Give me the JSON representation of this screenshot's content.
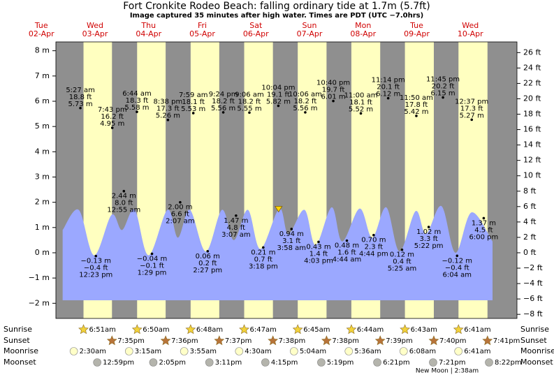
{
  "chart_data": {
    "type": "area",
    "title": "Fort Cronkite Rodeo Beach: falling  ordinary tide at 1.7m (5.7ft)",
    "subtitle": "Image captured 35 minutes after high water. Times are PDT (UTC −7.0hrs)",
    "xlim": [
      0.77,
      9.37
    ],
    "ylim": [
      -2.6,
      8.35
    ],
    "yticks": [
      {
        "value": -2,
        "label": "−2 m"
      },
      {
        "value": -1,
        "label": "−1 m"
      },
      {
        "value": 0,
        "label": "0 m"
      },
      {
        "value": 1,
        "label": "1 m"
      },
      {
        "value": 2,
        "label": "2 m"
      },
      {
        "value": 3,
        "label": "3 m"
      },
      {
        "value": 4,
        "label": "4 m"
      },
      {
        "value": 5,
        "label": "5 m"
      },
      {
        "value": 6,
        "label": "6 m"
      },
      {
        "value": 7,
        "label": "7 m"
      },
      {
        "value": 8,
        "label": "8 m"
      }
    ],
    "y2lim": [
      -8.53,
      27.39
    ],
    "y2ticks": [
      {
        "value": -8,
        "label": "−8 ft"
      },
      {
        "value": -6,
        "label": "−6 ft"
      },
      {
        "value": -4,
        "label": "−4 ft"
      },
      {
        "value": -2,
        "label": "−2 ft"
      },
      {
        "value": 0,
        "label": "0 ft"
      },
      {
        "value": 2,
        "label": "2 ft"
      },
      {
        "value": 4,
        "label": "4 ft"
      },
      {
        "value": 6,
        "label": "6 ft"
      },
      {
        "value": 8,
        "label": "8 ft"
      },
      {
        "value": 10,
        "label": "10 ft"
      },
      {
        "value": 12,
        "label": "12 ft"
      },
      {
        "value": 14,
        "label": "14 ft"
      },
      {
        "value": 16,
        "label": "16 ft"
      },
      {
        "value": 18,
        "label": "18 ft"
      },
      {
        "value": 20,
        "label": "20 ft"
      },
      {
        "value": 22,
        "label": "22 ft"
      },
      {
        "value": 24,
        "label": "24 ft"
      },
      {
        "value": 26,
        "label": "26 ft"
      }
    ],
    "days": [
      {
        "weekday": "Tue",
        "date": "02-Apr"
      },
      {
        "weekday": "Wed",
        "date": "03-Apr"
      },
      {
        "weekday": "Thu",
        "date": "04-Apr"
      },
      {
        "weekday": "Fri",
        "date": "05-Apr"
      },
      {
        "weekday": "Sat",
        "date": "06-Apr"
      },
      {
        "weekday": "Sun",
        "date": "07-Apr"
      },
      {
        "weekday": "Mon",
        "date": "08-Apr"
      },
      {
        "weekday": "Tue",
        "date": "09-Apr"
      },
      {
        "weekday": "Wed",
        "date": "10-Apr"
      }
    ],
    "day_color": "#ffffc0",
    "night_color": "#8f8f8f",
    "tide": {
      "color": "#9ba8ff",
      "x": [
        0.896,
        1.196,
        1.482,
        1.808,
        2.004,
        2.239,
        2.499,
        2.851,
        3.047,
        3.269,
        3.568,
        3.868,
        4.09,
        4.351,
        4.585,
        4.937,
        5.107,
        5.407,
        5.615,
        5.915,
        6.111,
        6.437,
        6.671,
        6.932,
        7.18,
        7.48,
        7.675,
        7.962,
        8.223,
        8.523,
        8.914
      ],
      "values": [
        0.9,
        1.7,
        -0.1,
        1.5,
        0.9,
        1.7,
        -0.1,
        1.7,
        0.6,
        1.7,
        0.05,
        1.7,
        0.5,
        1.7,
        0.15,
        1.75,
        0.75,
        1.7,
        0.3,
        1.8,
        0.45,
        1.75,
        0.6,
        1.8,
        0.05,
        1.65,
        0.75,
        1.85,
        0,
        1.6,
        0.45
      ]
    },
    "extremes": [
      {
        "x": 1.227,
        "time": "5:27 am",
        "ft": "18.8 ft",
        "value": 5.73,
        "value_label": "5.73 m"
      },
      {
        "x": 1.516,
        "time": "12:23 pm",
        "ft": "−0.4 ft",
        "value": -0.13,
        "value_label": "−0.13 m"
      },
      {
        "x": 1.822,
        "time": "7:43 pm",
        "ft": "16.2 ft",
        "value": 4.95,
        "value_label": "4.95 m"
      },
      {
        "x": 2.038,
        "time": "12:55 am",
        "ft": "8.0 ft",
        "value": 2.44,
        "value_label": "2.44 m"
      },
      {
        "x": 2.281,
        "time": "6:44 am",
        "ft": "18.3 ft",
        "value": 5.58,
        "value_label": "5.58 m"
      },
      {
        "x": 2.562,
        "time": "1:29 pm",
        "ft": "−0.1 ft",
        "value": -0.04,
        "value_label": "−0.04 m"
      },
      {
        "x": 2.86,
        "time": "8:38 pm",
        "ft": "17.3 ft",
        "value": 5.26,
        "value_label": "5.26 m"
      },
      {
        "x": 3.088,
        "time": "2:07 am",
        "ft": "6.6 ft",
        "value": 2.0,
        "value_label": "2.00 m"
      },
      {
        "x": 3.333,
        "time": "7:59 am",
        "ft": "18.1 ft",
        "value": 5.53,
        "value_label": "5.53 m"
      },
      {
        "x": 3.601,
        "time": "2:27 pm",
        "ft": "0.2 ft",
        "value": 0.06,
        "value_label": "0.06 m"
      },
      {
        "x": 3.892,
        "time": "9:24 pm",
        "ft": "18.2 ft",
        "value": 5.56,
        "value_label": "5.56 m"
      },
      {
        "x": 4.13,
        "time": "3:07 am",
        "ft": "4.8 ft",
        "value": 1.47,
        "value_label": "1.47 m"
      },
      {
        "x": 4.379,
        "time": "9:06 am",
        "ft": "18.2 ft",
        "value": 5.55,
        "value_label": "5.55 m"
      },
      {
        "x": 4.638,
        "time": "3:18 pm",
        "ft": "0.7 ft",
        "value": 0.21,
        "value_label": "0.21 m"
      },
      {
        "x": 4.919,
        "time": "10:04 pm",
        "ft": "19.1 ft",
        "value": 5.82,
        "value_label": "5.82 m"
      },
      {
        "x": 5.165,
        "time": "3:58 am",
        "ft": "3.1 ft",
        "value": 0.94,
        "value_label": "0.94 m"
      },
      {
        "x": 5.421,
        "time": "10:06 am",
        "ft": "18.2 ft",
        "value": 5.56,
        "value_label": "5.56 m"
      },
      {
        "x": 5.669,
        "time": "4:03 pm",
        "ft": "1.4 ft",
        "value": 0.43,
        "value_label": "0.43 m"
      },
      {
        "x": 5.944,
        "time": "10:40 pm",
        "ft": "19.7 ft",
        "value": 6.01,
        "value_label": "6.01 m"
      },
      {
        "x": 6.197,
        "time": "4:44 am",
        "ft": "1.6 ft",
        "value": 0.48,
        "value_label": "0.48 m"
      },
      {
        "x": 6.458,
        "time": "11:00 am",
        "ft": "18.1 ft",
        "value": 5.52,
        "value_label": "5.52 m"
      },
      {
        "x": 6.697,
        "time": "4:44 pm",
        "ft": "2.3 ft",
        "value": 0.7,
        "value_label": "0.70 m"
      },
      {
        "x": 6.968,
        "time": "11:14 pm",
        "ft": "20.1 ft",
        "value": 6.12,
        "value_label": "6.12 m"
      },
      {
        "x": 7.226,
        "time": "5:25 am",
        "ft": "0.4 ft",
        "value": 0.12,
        "value_label": "0.12 m"
      },
      {
        "x": 7.493,
        "time": "11:50 am",
        "ft": "17.8 ft",
        "value": 5.42,
        "value_label": "5.42 m"
      },
      {
        "x": 7.724,
        "time": "5:22 pm",
        "ft": "3.3 ft",
        "value": 1.02,
        "value_label": "1.02 m"
      },
      {
        "x": 7.99,
        "time": "11:45 pm",
        "ft": "20.2 ft",
        "value": 6.15,
        "value_label": "6.15 m"
      },
      {
        "x": 8.253,
        "time": "6:04 am",
        "ft": "−0.4 ft",
        "value": -0.12,
        "value_label": "−0.12 m"
      },
      {
        "x": 8.526,
        "time": "12:37 pm",
        "ft": "17.3 ft",
        "value": 5.27,
        "value_label": "5.27 m"
      },
      {
        "x": 8.75,
        "time": "6:00 pm",
        "ft": "4.5 ft",
        "value": 1.37,
        "value_label": "1.37 m"
      }
    ],
    "current": {
      "x": 4.924,
      "value": 1.7,
      "color": "#ffd400"
    },
    "events": [
      {
        "name": "Sunrise",
        "marker": "star",
        "color": "#f2d23a",
        "x": [
          1.285,
          2.285,
          3.283,
          4.282,
          5.281,
          6.281,
          7.28,
          8.279
        ],
        "times": [
          "6:51am",
          "6:50am",
          "6:48am",
          "6:47am",
          "6:45am",
          "6:44am",
          "6:43am",
          "6:41am"
        ]
      },
      {
        "name": "Sunset",
        "marker": "star",
        "color": "#b8743a",
        "x": [
          1.816,
          2.817,
          3.817,
          4.818,
          5.818,
          6.819,
          7.819,
          8.82
        ],
        "times": [
          "7:35pm",
          "7:36pm",
          "7:37pm",
          "7:38pm",
          "7:38pm",
          "7:39pm",
          "7:40pm",
          "7:41pm"
        ]
      },
      {
        "name": "Moonrise",
        "marker": "circle",
        "color": "#ffffc8",
        "x": [
          1.104,
          2.135,
          3.163,
          4.188,
          5.211,
          6.233,
          7.256,
          8.278
        ],
        "times": [
          "2:30am",
          "3:15am",
          "3:55am",
          "4:30am",
          "5:04am",
          "5:36am",
          "6:08am",
          "6:41am"
        ]
      },
      {
        "name": "Moonset",
        "marker": "circle",
        "color": "#b4b4ac",
        "x": [
          1.541,
          2.587,
          3.633,
          4.677,
          5.72,
          6.765,
          7.806,
          8.849
        ],
        "times": [
          "12:59pm",
          "2:05pm",
          "3:11pm",
          "4:15pm",
          "5:19pm",
          "6:21pm",
          "7:21pm",
          "8:22pm"
        ]
      }
    ],
    "annotation": "New Moon | 2:38am"
  }
}
